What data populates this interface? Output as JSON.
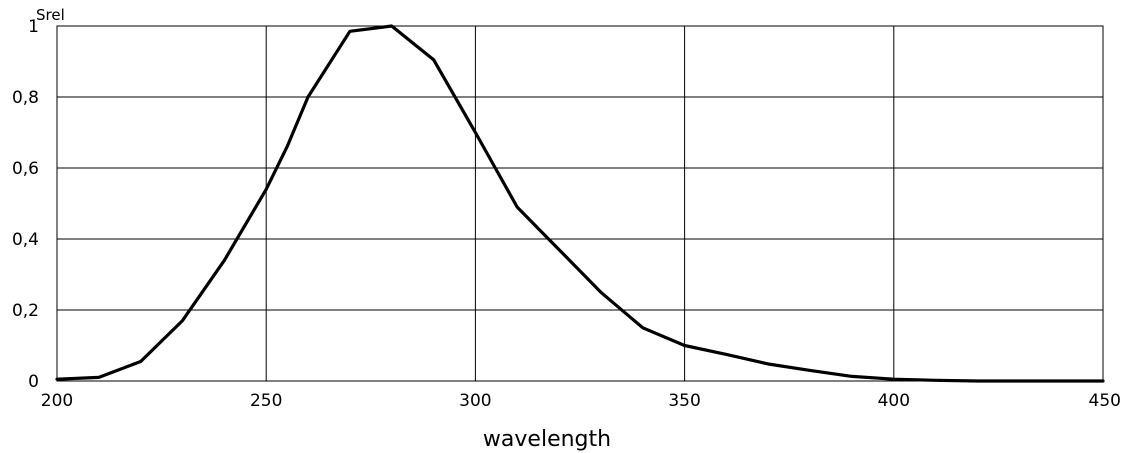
{
  "chart_data": {
    "type": "line",
    "xlabel": "wavelength",
    "ylabel": "Srel",
    "xlim": [
      200,
      450
    ],
    "ylim": [
      0,
      1
    ],
    "grid": true,
    "x_ticks": [
      200,
      250,
      300,
      350,
      400,
      450
    ],
    "y_ticks": [
      0,
      0.2,
      0.4,
      0.6,
      0.8,
      1
    ],
    "x_tick_labels": [
      "200",
      "250",
      "300",
      "350",
      "400",
      "450"
    ],
    "y_tick_labels": [
      "0",
      "0,2",
      "0,4",
      "0,6",
      "0,8",
      "1"
    ],
    "series": [
      {
        "color": "#000000",
        "x": [
          200,
          210,
          220,
          230,
          240,
          250,
          255,
          260,
          270,
          280,
          290,
          300,
          310,
          320,
          330,
          340,
          350,
          360,
          370,
          380,
          390,
          400,
          410,
          420,
          430,
          440,
          450
        ],
        "y": [
          0.005,
          0.01,
          0.055,
          0.17,
          0.34,
          0.54,
          0.66,
          0.8,
          0.985,
          1.0,
          0.905,
          0.7,
          0.49,
          0.37,
          0.25,
          0.15,
          0.1,
          0.075,
          0.048,
          0.03,
          0.013,
          0.005,
          0.002,
          0.0,
          0.0,
          0.0,
          0.0
        ]
      }
    ]
  }
}
